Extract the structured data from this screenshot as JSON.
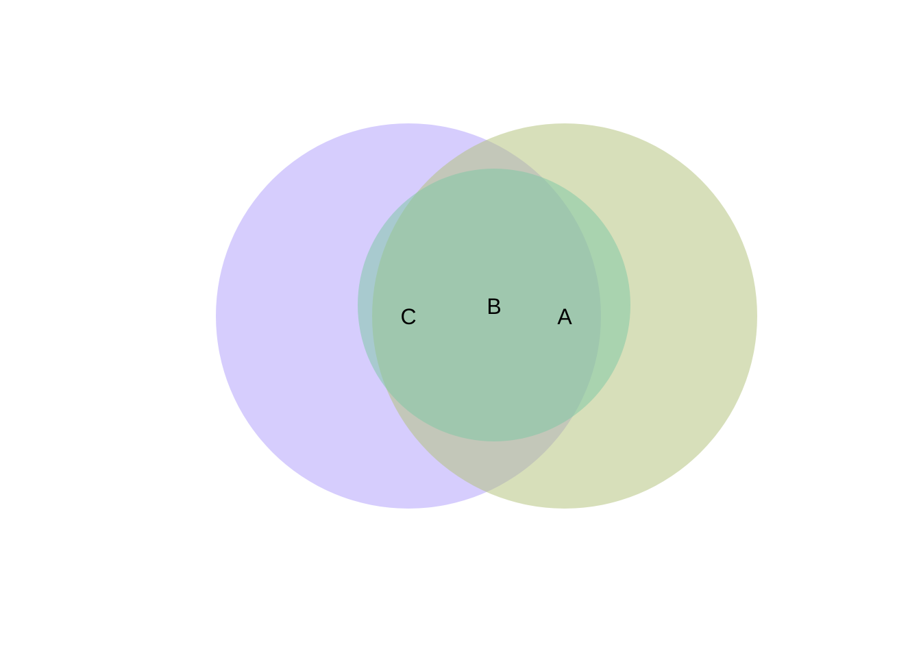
{
  "diagram": {
    "type": "venn",
    "sets": [
      {
        "id": "A",
        "label": "A",
        "color": "#b3c17b"
      },
      {
        "id": "B",
        "label": "B",
        "color": "#7ec8a5"
      },
      {
        "id": "C",
        "label": "C",
        "color": "#b8a8fb"
      }
    ]
  }
}
